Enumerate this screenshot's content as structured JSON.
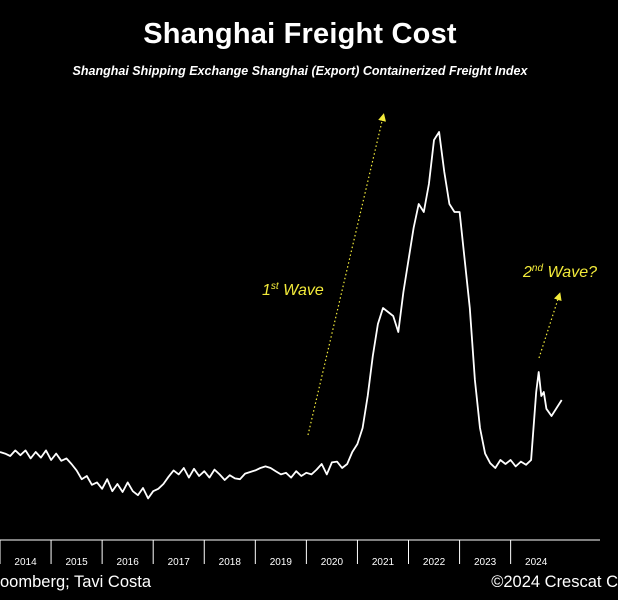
{
  "title": "Shanghai Freight Cost",
  "subtitle": "Shanghai Shipping Exchange Shanghai (Export) Containerized Freight Index",
  "source": "oomberg; Tavi Costa",
  "copyright": "©2024 Crescat C",
  "colors": {
    "background": "#000000",
    "line": "#ffffff",
    "annotation": "#f2ea3a",
    "axis": "#ffffff"
  },
  "chart_data": {
    "type": "line",
    "title": "Shanghai Freight Cost",
    "subtitle": "Shanghai Shipping Exchange Shanghai (Export) Containerized Freight Index",
    "xlabel": "",
    "ylabel": "",
    "x_ticks": [
      "2014",
      "2015",
      "2016",
      "2017",
      "2018",
      "2019",
      "2020",
      "2021",
      "2022",
      "2023",
      "2024"
    ],
    "xlim": [
      2013.5,
      2025.25
    ],
    "ylim": [
      0,
      5500
    ],
    "grid": false,
    "legend": "none",
    "y_axis_visible": false,
    "series": [
      {
        "x": [
          2013.5,
          2013.6,
          2013.7,
          2013.8,
          2013.9,
          2014.0,
          2014.1,
          2014.2,
          2014.3,
          2014.4,
          2014.5,
          2014.6,
          2014.7,
          2014.8,
          2014.9,
          2015.0,
          2015.1,
          2015.2,
          2015.3,
          2015.4,
          2015.5,
          2015.6,
          2015.7,
          2015.8,
          2015.9,
          2016.0,
          2016.1,
          2016.2,
          2016.3,
          2016.4,
          2016.5,
          2016.6,
          2016.7,
          2016.8,
          2016.9,
          2017.0,
          2017.1,
          2017.2,
          2017.3,
          2017.4,
          2017.5,
          2017.6,
          2017.7,
          2017.8,
          2017.9,
          2018.0,
          2018.1,
          2018.2,
          2018.3,
          2018.4,
          2018.5,
          2018.6,
          2018.7,
          2018.8,
          2018.9,
          2019.0,
          2019.1,
          2019.2,
          2019.3,
          2019.4,
          2019.5,
          2019.6,
          2019.7,
          2019.8,
          2019.9,
          2020.0,
          2020.1,
          2020.2,
          2020.3,
          2020.4,
          2020.5,
          2020.6,
          2020.7,
          2020.8,
          2020.9,
          2021.0,
          2021.1,
          2021.2,
          2021.3,
          2021.4,
          2021.5,
          2021.6,
          2021.7,
          2021.8,
          2021.9,
          2022.0,
          2022.1,
          2022.2,
          2022.3,
          2022.4,
          2022.5,
          2022.6,
          2022.7,
          2022.8,
          2022.9,
          2023.0,
          2023.1,
          2023.2,
          2023.3,
          2023.4,
          2023.5,
          2023.6,
          2023.7,
          2023.8,
          2023.9,
          2024.0,
          2024.05,
          2024.1,
          2024.15,
          2024.2,
          2024.3,
          2024.4,
          2024.5
        ],
        "y": [
          1100,
          1080,
          1050,
          1120,
          1060,
          1120,
          1020,
          1100,
          1030,
          1120,
          1000,
          1080,
          990,
          1020,
          950,
          870,
          760,
          800,
          690,
          720,
          640,
          760,
          610,
          700,
          600,
          720,
          610,
          560,
          650,
          520,
          610,
          640,
          700,
          790,
          870,
          820,
          900,
          780,
          890,
          800,
          860,
          780,
          880,
          820,
          750,
          810,
          770,
          760,
          830,
          850,
          870,
          900,
          920,
          900,
          860,
          820,
          840,
          780,
          860,
          800,
          840,
          820,
          880,
          950,
          820,
          970,
          980,
          900,
          950,
          1100,
          1200,
          1400,
          1800,
          2300,
          2700,
          2900,
          2850,
          2800,
          2600,
          3100,
          3500,
          3900,
          4200,
          4100,
          4450,
          5000,
          5100,
          4600,
          4200,
          4100,
          4100,
          3500,
          2900,
          2000,
          1400,
          1080,
          960,
          900,
          1000,
          950,
          1000,
          920,
          980,
          940,
          1000,
          1850,
          2100,
          1800,
          1850,
          1640,
          1550,
          1650,
          1750
        ]
      }
    ],
    "annotations": [
      {
        "text": "1",
        "sup": "st",
        "rest": " Wave"
      },
      {
        "text": "2",
        "sup": "nd",
        "rest": " Wave?"
      }
    ]
  }
}
